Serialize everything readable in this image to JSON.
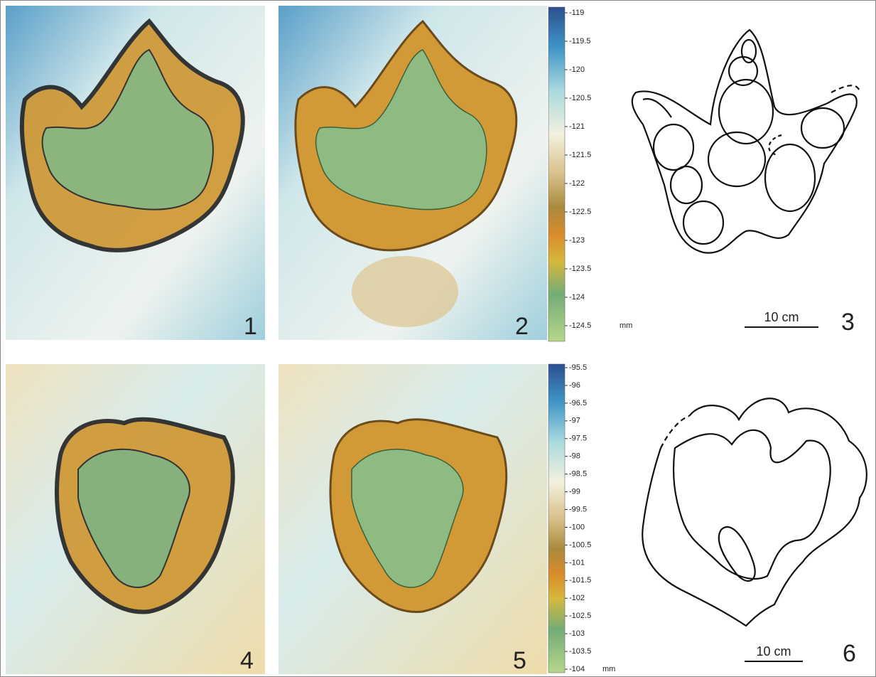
{
  "panels": [
    {
      "label": "1"
    },
    {
      "label": "2"
    },
    {
      "label": "3"
    },
    {
      "label": "4"
    },
    {
      "label": "5"
    },
    {
      "label": "6"
    }
  ],
  "colorbars": [
    {
      "ticks": [
        "-119",
        "-119.5",
        "-120",
        "-120.5",
        "-121",
        "-121.5",
        "-122",
        "-122.5",
        "-123",
        "-123.5",
        "-124",
        "-124.5"
      ],
      "unit": "mm"
    },
    {
      "ticks": [
        "-95.5",
        "-96",
        "-96.5",
        "-97",
        "-97.5",
        "-98",
        "-98.5",
        "-99",
        "-99.5",
        "-100",
        "-100.5",
        "-101",
        "-101.5",
        "-102",
        "-102.5",
        "-103",
        "-103.5",
        "-104"
      ],
      "unit": "mm"
    }
  ],
  "scale_bars": [
    {
      "label": "10 cm"
    },
    {
      "label": "10 cm"
    }
  ]
}
